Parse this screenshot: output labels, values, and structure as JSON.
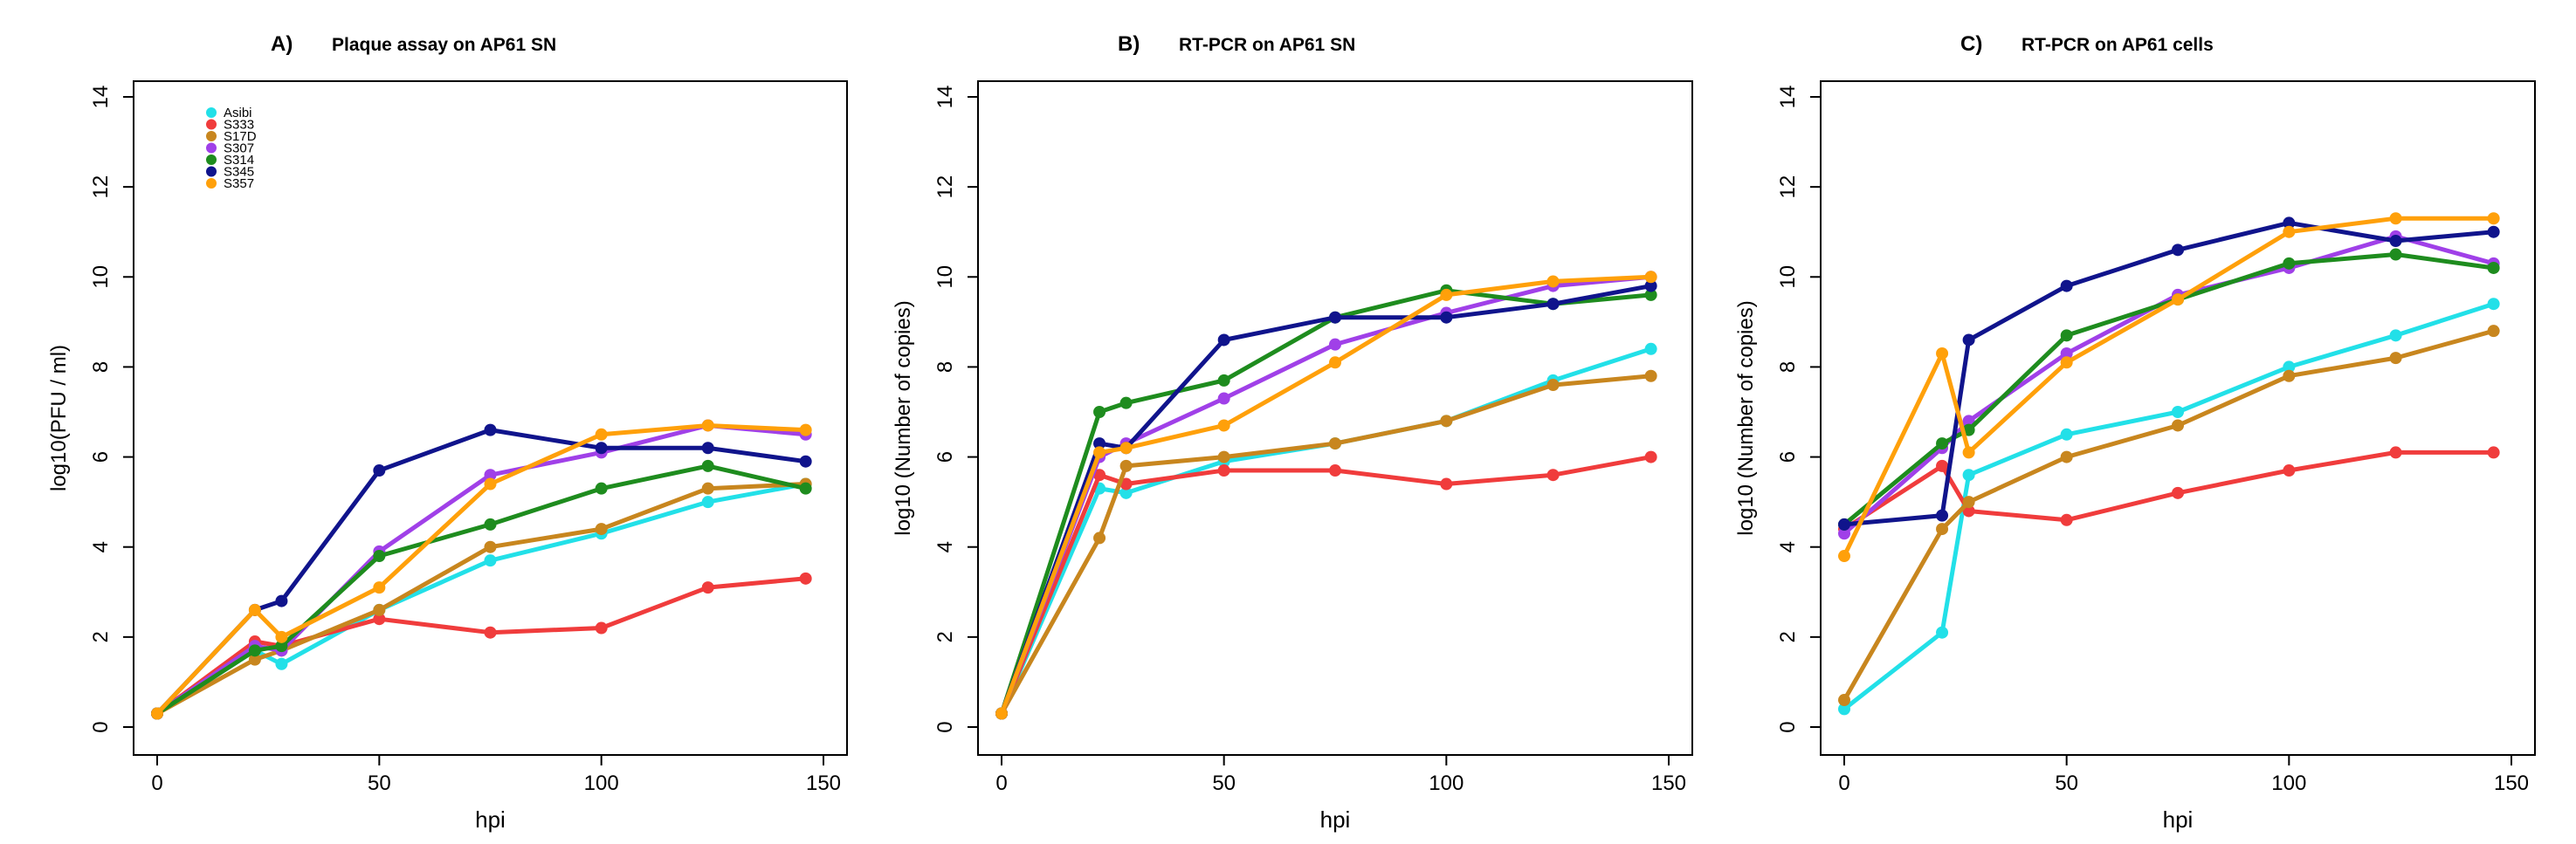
{
  "colors": {
    "Asibi": "#22e0e8",
    "S333": "#f03c3c",
    "S17D": "#c8861e",
    "S307": "#a040e8",
    "S314": "#1e8c1e",
    "S345": "#10148c",
    "S357": "#ffa00a"
  },
  "chart_data": [
    {
      "type": "line",
      "panel_label": "A)",
      "title": "Plaque assay on AP61 SN",
      "xlabel": "hpi",
      "ylabel": "log10(PFU / ml)",
      "xlim": [
        0,
        150
      ],
      "ylim": [
        0,
        14
      ],
      "xticks": [
        "0",
        "50",
        "100",
        "150"
      ],
      "yticks": [
        "0",
        "2",
        "4",
        "6",
        "8",
        "10",
        "12",
        "14"
      ],
      "legend": [
        "Asibi",
        "S333",
        "S17D",
        "S307",
        "S314",
        "S345",
        "S357"
      ],
      "legend_position": "top-left",
      "series": [
        {
          "name": "Asibi",
          "x": [
            0,
            22,
            28,
            50,
            75,
            100,
            124,
            146
          ],
          "values": [
            0.3,
            1.7,
            1.4,
            2.6,
            3.7,
            4.3,
            5.0,
            5.4
          ]
        },
        {
          "name": "S333",
          "x": [
            0,
            22,
            28,
            50,
            75,
            100,
            124,
            146
          ],
          "values": [
            0.3,
            1.9,
            1.8,
            2.4,
            2.1,
            2.2,
            3.1,
            3.3
          ]
        },
        {
          "name": "S17D",
          "x": [
            0,
            22,
            28,
            50,
            75,
            100,
            124,
            146
          ],
          "values": [
            0.3,
            1.5,
            1.7,
            2.6,
            4.0,
            4.4,
            5.3,
            5.4
          ]
        },
        {
          "name": "S307",
          "x": [
            0,
            22,
            28,
            50,
            75,
            100,
            124,
            146
          ],
          "values": [
            0.3,
            1.8,
            1.7,
            3.9,
            5.6,
            6.1,
            6.7,
            6.5
          ]
        },
        {
          "name": "S314",
          "x": [
            0,
            22,
            28,
            50,
            75,
            100,
            124,
            146
          ],
          "values": [
            0.3,
            1.7,
            1.8,
            3.8,
            4.5,
            5.3,
            5.8,
            5.3
          ]
        },
        {
          "name": "S345",
          "x": [
            0,
            22,
            28,
            50,
            75,
            100,
            124,
            146
          ],
          "values": [
            0.3,
            2.6,
            2.8,
            5.7,
            6.6,
            6.2,
            6.2,
            5.9
          ]
        },
        {
          "name": "S357",
          "x": [
            0,
            22,
            28,
            50,
            75,
            100,
            124,
            146
          ],
          "values": [
            0.3,
            2.6,
            2.0,
            3.1,
            5.4,
            6.5,
            6.7,
            6.6
          ]
        }
      ]
    },
    {
      "type": "line",
      "panel_label": "B)",
      "title": "RT-PCR on AP61 SN",
      "xlabel": "hpi",
      "ylabel": "log10 (Number of copies)",
      "xlim": [
        0,
        150
      ],
      "ylim": [
        0,
        14
      ],
      "xticks": [
        "0",
        "50",
        "100",
        "150"
      ],
      "yticks": [
        "0",
        "2",
        "4",
        "6",
        "8",
        "10",
        "12",
        "14"
      ],
      "series": [
        {
          "name": "Asibi",
          "x": [
            0,
            22,
            28,
            50,
            75,
            100,
            124,
            146
          ],
          "values": [
            0.3,
            5.3,
            5.2,
            5.9,
            6.3,
            6.8,
            7.7,
            8.4
          ]
        },
        {
          "name": "S333",
          "x": [
            0,
            22,
            28,
            50,
            75,
            100,
            124,
            146
          ],
          "values": [
            0.3,
            5.6,
            5.4,
            5.7,
            5.7,
            5.4,
            5.6,
            6.0
          ]
        },
        {
          "name": "S17D",
          "x": [
            0,
            22,
            28,
            50,
            75,
            100,
            124,
            146
          ],
          "values": [
            0.3,
            4.2,
            5.8,
            6.0,
            6.3,
            6.8,
            7.6,
            7.8
          ]
        },
        {
          "name": "S307",
          "x": [
            0,
            22,
            28,
            50,
            75,
            100,
            124,
            146
          ],
          "values": [
            0.3,
            6.0,
            6.3,
            7.3,
            8.5,
            9.2,
            9.8,
            10.0
          ]
        },
        {
          "name": "S314",
          "x": [
            0,
            22,
            28,
            50,
            75,
            100,
            124,
            146
          ],
          "values": [
            0.3,
            7.0,
            7.2,
            7.7,
            9.1,
            9.7,
            9.4,
            9.6
          ]
        },
        {
          "name": "S345",
          "x": [
            0,
            22,
            28,
            50,
            75,
            100,
            124,
            146
          ],
          "values": [
            0.3,
            6.3,
            6.2,
            8.6,
            9.1,
            9.1,
            9.4,
            9.8
          ]
        },
        {
          "name": "S357",
          "x": [
            0,
            22,
            28,
            50,
            75,
            100,
            124,
            146
          ],
          "values": [
            0.3,
            6.1,
            6.2,
            6.7,
            8.1,
            9.6,
            9.9,
            10.0
          ]
        }
      ]
    },
    {
      "type": "line",
      "panel_label": "C)",
      "title": "RT-PCR on AP61 cells",
      "xlabel": "hpi",
      "ylabel": "log10 (Number of copies)",
      "xlim": [
        0,
        150
      ],
      "ylim": [
        0,
        14
      ],
      "xticks": [
        "0",
        "50",
        "100",
        "150"
      ],
      "yticks": [
        "0",
        "2",
        "4",
        "6",
        "8",
        "10",
        "12",
        "14"
      ],
      "series": [
        {
          "name": "Asibi",
          "x": [
            0,
            22,
            28,
            50,
            75,
            100,
            124,
            146
          ],
          "values": [
            0.4,
            2.1,
            5.6,
            6.5,
            7.0,
            8.0,
            8.7,
            9.4
          ]
        },
        {
          "name": "S333",
          "x": [
            0,
            22,
            28,
            50,
            75,
            100,
            124,
            146
          ],
          "values": [
            4.4,
            5.8,
            4.8,
            4.6,
            5.2,
            5.7,
            6.1,
            6.1
          ]
        },
        {
          "name": "S17D",
          "x": [
            0,
            22,
            28,
            50,
            75,
            100,
            124,
            146
          ],
          "values": [
            0.6,
            4.4,
            5.0,
            6.0,
            6.7,
            7.8,
            8.2,
            8.8
          ]
        },
        {
          "name": "S307",
          "x": [
            0,
            22,
            28,
            50,
            75,
            100,
            124,
            146
          ],
          "values": [
            4.3,
            6.2,
            6.8,
            8.3,
            9.6,
            10.2,
            10.9,
            10.3
          ]
        },
        {
          "name": "S314",
          "x": [
            0,
            22,
            28,
            50,
            75,
            100,
            124,
            146
          ],
          "values": [
            4.5,
            6.3,
            6.6,
            8.7,
            9.5,
            10.3,
            10.5,
            10.2
          ]
        },
        {
          "name": "S345",
          "x": [
            0,
            22,
            28,
            50,
            75,
            100,
            124,
            146
          ],
          "values": [
            4.5,
            4.7,
            8.6,
            9.8,
            10.6,
            11.2,
            10.8,
            11.0
          ]
        },
        {
          "name": "S357",
          "x": [
            0,
            22,
            28,
            50,
            75,
            100,
            124,
            146
          ],
          "values": [
            3.8,
            8.3,
            6.1,
            8.1,
            9.5,
            11.0,
            11.3,
            11.3
          ]
        }
      ]
    }
  ]
}
